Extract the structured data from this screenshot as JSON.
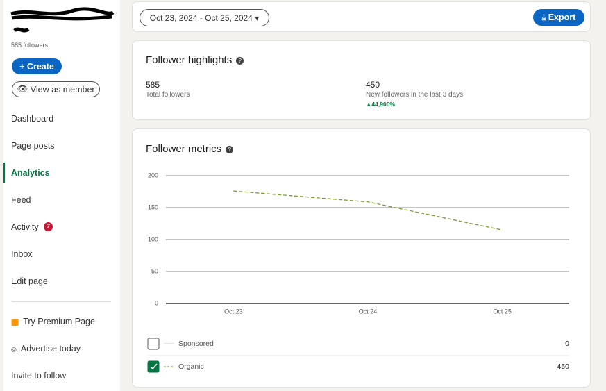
{
  "sidebar": {
    "followers": "585 followers",
    "create": "Create",
    "view_as_member": "View as member",
    "nav": [
      "Dashboard",
      "Page posts",
      "Analytics",
      "Feed",
      "Activity",
      "Inbox",
      "Edit page"
    ],
    "active": 2,
    "activity_badge": "7",
    "extra": [
      "Try Premium Page",
      "Advertise today",
      "Invite to follow"
    ]
  },
  "toolbar": {
    "date_range": "Oct 23, 2024 - Oct 25, 2024",
    "export": "Export"
  },
  "highlights": {
    "title": "Follower highlights",
    "items": [
      {
        "value": "585",
        "label": "Total followers"
      },
      {
        "value": "450",
        "label": "New followers in the last 3 days",
        "change": "44,900%"
      }
    ]
  },
  "chart_data": {
    "type": "line",
    "title": "Follower metrics",
    "categories": [
      "Oct 23",
      "Oct 24",
      "Oct 25"
    ],
    "ylim": [
      0,
      200
    ],
    "yticks": [
      0,
      50,
      100,
      150,
      200
    ],
    "grid": true,
    "series": [
      {
        "name": "Sponsored",
        "color": "#c8c8c8",
        "visible": false,
        "total": "0"
      },
      {
        "name": "Organic",
        "color": "#7a9a2e",
        "visible": true,
        "total": "450",
        "values": [
          176,
          159,
          115
        ]
      }
    ]
  }
}
